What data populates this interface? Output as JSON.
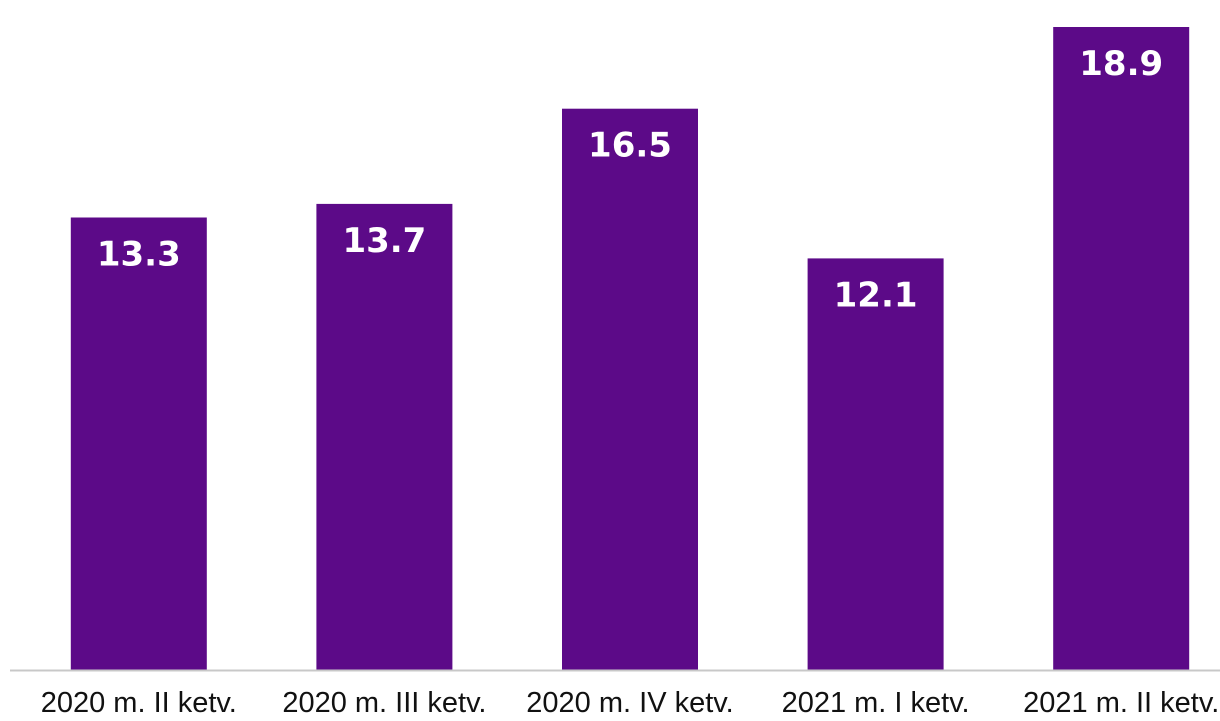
{
  "chart_data": {
    "type": "bar",
    "categories": [
      "2020 m. II ketv.",
      "2020 m. III ketv.",
      "2020 m. IV ketv.",
      "2021 m. I ketv.",
      "2021 m. II ketv."
    ],
    "values": [
      13.3,
      13.7,
      16.5,
      12.1,
      18.9
    ],
    "data_labels": [
      "13.3",
      "13.7",
      "16.5",
      "12.1",
      "18.9"
    ],
    "title": "",
    "xlabel": "",
    "ylabel": "",
    "ylim": [
      0,
      19.4
    ],
    "grid": false,
    "legend": "none",
    "colors": {
      "bar": "#5c0a88",
      "axis": "#c8c8c8",
      "data_label": "#ffffff",
      "category_label": "#111111"
    }
  }
}
